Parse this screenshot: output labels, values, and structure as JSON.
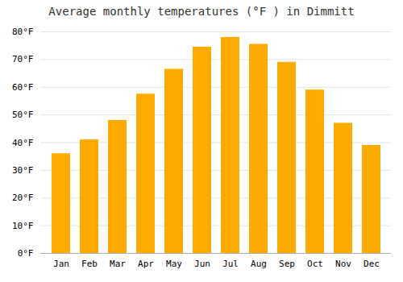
{
  "chart_data": {
    "type": "bar",
    "title": "Average monthly temperatures (°F ) in Dimmitt",
    "categories": [
      "Jan",
      "Feb",
      "Mar",
      "Apr",
      "May",
      "Jun",
      "Jul",
      "Aug",
      "Sep",
      "Oct",
      "Nov",
      "Dec"
    ],
    "values": [
      36,
      41,
      48,
      57.5,
      66.5,
      74.5,
      78,
      75.5,
      69,
      59,
      47,
      39
    ],
    "color": "#FFAA00",
    "ylim": [
      0,
      80
    ],
    "yticks": [
      {
        "value": 0,
        "label": "0°F"
      },
      {
        "value": 10,
        "label": "10°F"
      },
      {
        "value": 20,
        "label": "20°F"
      },
      {
        "value": 30,
        "label": "30°F"
      },
      {
        "value": 40,
        "label": "40°F"
      },
      {
        "value": 50,
        "label": "50°F"
      },
      {
        "value": 60,
        "label": "60°F"
      },
      {
        "value": 70,
        "label": "70°F"
      },
      {
        "value": 80,
        "label": "80°F"
      }
    ],
    "grid": true
  }
}
